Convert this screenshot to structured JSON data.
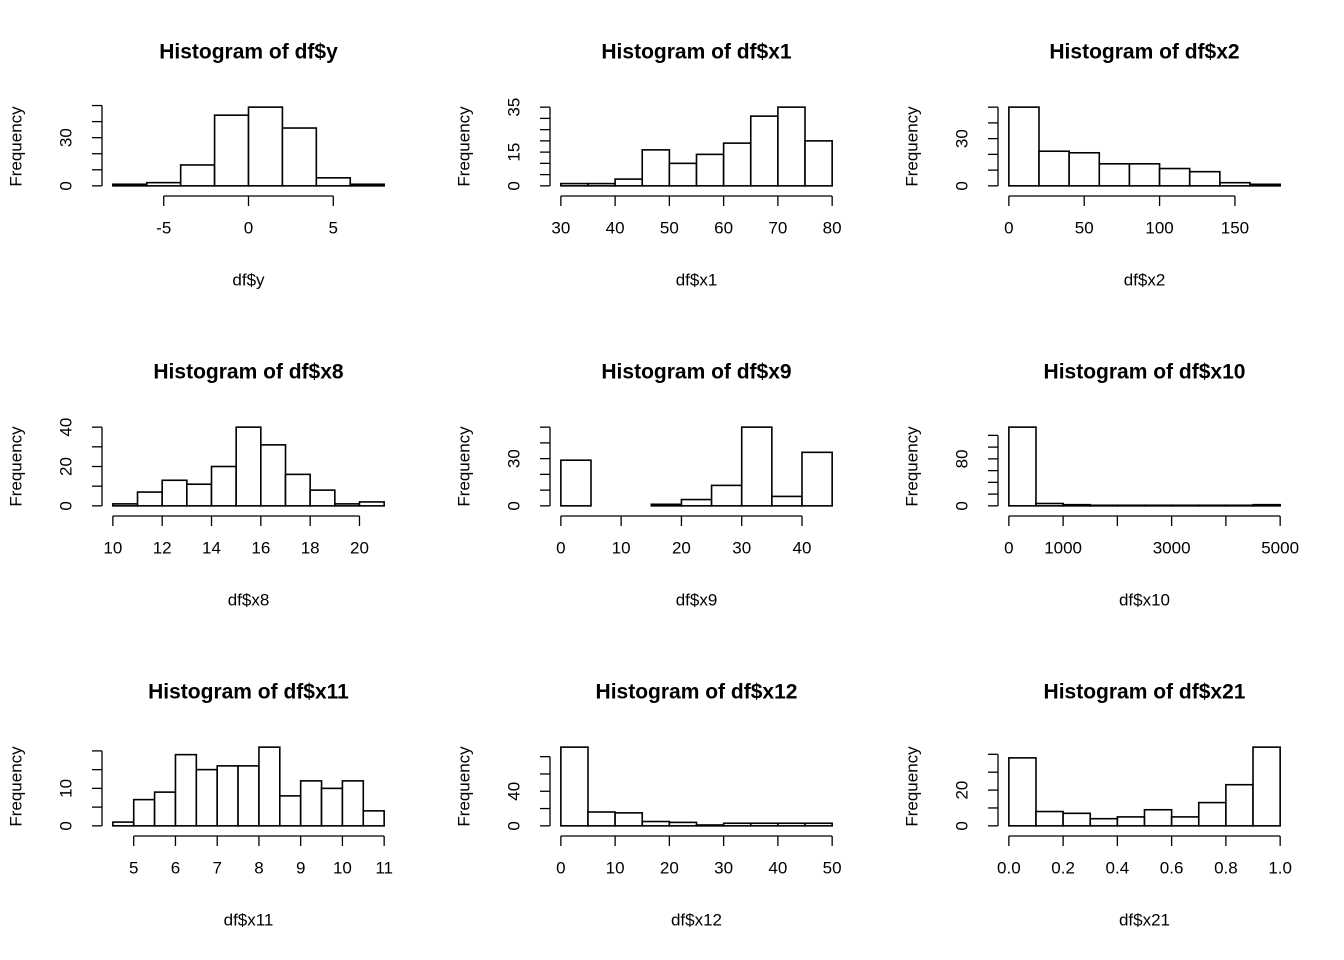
{
  "chart_data": [
    {
      "type": "histogram",
      "title": "Histogram of df$y",
      "x_label": "df$y",
      "y_label": "Frequency",
      "color": "#ffffff",
      "bins": [
        -8,
        -6,
        -4,
        -2,
        0,
        2,
        4,
        6,
        8
      ],
      "counts": [
        1,
        2,
        13,
        44,
        49,
        36,
        5,
        1
      ],
      "xlim": [
        -8.64,
        8.64
      ],
      "ylim": [
        -1.96,
        50.96
      ],
      "xticks": [
        -5,
        0,
        5
      ],
      "yticks": [
        0,
        30
      ],
      "yticks_unlabeled": [
        10,
        20,
        40,
        50
      ]
    },
    {
      "type": "histogram",
      "title": "Histogram of df$x1",
      "x_label": "df$x1",
      "y_label": "Frequency",
      "color": "#ffffff",
      "bins": [
        30,
        35,
        40,
        45,
        50,
        55,
        60,
        65,
        70,
        75,
        80
      ],
      "counts": [
        1,
        1,
        3,
        16,
        10,
        14,
        19,
        31,
        35,
        20
      ],
      "xlim": [
        28,
        82
      ],
      "ylim": [
        -1.4,
        36.4
      ],
      "xticks": [
        30,
        40,
        50,
        60,
        70,
        80
      ],
      "yticks": [
        0,
        15,
        35
      ],
      "yticks_unlabeled": [
        5,
        10,
        20,
        25,
        30
      ]
    },
    {
      "type": "histogram",
      "title": "Histogram of df$x2",
      "x_label": "df$x2",
      "y_label": "Frequency",
      "color": "#ffffff",
      "bins": [
        0,
        20,
        40,
        60,
        80,
        100,
        120,
        140,
        160,
        180
      ],
      "counts": [
        50,
        22,
        21,
        14,
        14,
        11,
        9,
        2,
        1
      ],
      "xlim": [
        -7.2,
        187.2
      ],
      "ylim": [
        -2,
        52
      ],
      "xticks": [
        0,
        50,
        100,
        150
      ],
      "yticks": [
        0,
        30
      ],
      "yticks_unlabeled": [
        10,
        20,
        40,
        50
      ]
    },
    {
      "type": "histogram",
      "title": "Histogram of df$x8",
      "x_label": "df$x8",
      "y_label": "Frequency",
      "color": "#ffffff",
      "bins": [
        10,
        11,
        12,
        13,
        14,
        15,
        16,
        17,
        18,
        19,
        20,
        21
      ],
      "counts": [
        1,
        7,
        13,
        11,
        20,
        40,
        31,
        16,
        8,
        1,
        2
      ],
      "xlim": [
        9.56,
        21.44
      ],
      "ylim": [
        -1.6,
        41.6
      ],
      "xticks": [
        10,
        12,
        14,
        16,
        18,
        20
      ],
      "yticks": [
        0,
        20,
        40
      ],
      "yticks_unlabeled": [
        10,
        30
      ]
    },
    {
      "type": "histogram",
      "title": "Histogram of df$x9",
      "x_label": "df$x9",
      "y_label": "Frequency",
      "color": "#ffffff",
      "bins": [
        0,
        5,
        10,
        15,
        20,
        25,
        30,
        35,
        40,
        45
      ],
      "counts": [
        29,
        0,
        0,
        1,
        4,
        13,
        50,
        6,
        34
      ],
      "xlim": [
        -1.8,
        46.8
      ],
      "ylim": [
        -2,
        52
      ],
      "xticks": [
        0,
        10,
        20,
        30,
        40
      ],
      "yticks": [
        0,
        30
      ],
      "yticks_unlabeled": [
        10,
        20,
        40,
        50
      ]
    },
    {
      "type": "histogram",
      "title": "Histogram of df$x10",
      "x_label": "df$x10",
      "y_label": "Frequency",
      "color": "#ffffff",
      "bins": [
        0,
        500,
        1000,
        1500,
        2000,
        2500,
        3000,
        3500,
        4000,
        4500,
        5000
      ],
      "counts": [
        134,
        4,
        2,
        1,
        1,
        1,
        1,
        1,
        1,
        2
      ],
      "xlim": [
        -200,
        5200
      ],
      "ylim": [
        -5.36,
        139.36
      ],
      "xticks": [
        0,
        1000,
        3000,
        5000
      ],
      "xticks_unlabeled": [
        2000,
        4000
      ],
      "yticks": [
        0,
        80
      ],
      "yticks_unlabeled": [
        20,
        40,
        60,
        100,
        120
      ]
    },
    {
      "type": "histogram",
      "title": "Histogram of df$x11",
      "x_label": "df$x11",
      "y_label": "Frequency",
      "color": "#ffffff",
      "bins": [
        4.5,
        5,
        5.5,
        6,
        6.5,
        7,
        7.5,
        8,
        8.5,
        9,
        9.5,
        10,
        10.5,
        11
      ],
      "counts": [
        1,
        7,
        9,
        19,
        15,
        16,
        16,
        21,
        8,
        12,
        10,
        12,
        4
      ],
      "xlim": [
        4.24,
        11.26
      ],
      "ylim": [
        -0.84,
        21.84
      ],
      "xticks": [
        5,
        6,
        7,
        8,
        9,
        10,
        11
      ],
      "yticks": [
        0,
        10
      ],
      "yticks_unlabeled": [
        5,
        15,
        20
      ]
    },
    {
      "type": "histogram",
      "title": "Histogram of df$x12",
      "x_label": "df$x12",
      "y_label": "Frequency",
      "color": "#ffffff",
      "bins": [
        0,
        5,
        10,
        15,
        20,
        25,
        30,
        35,
        40,
        45,
        50
      ],
      "counts": [
        91,
        16,
        15,
        5,
        4,
        1,
        3,
        3,
        3,
        3
      ],
      "xlim": [
        -2,
        52
      ],
      "ylim": [
        -3.64,
        94.64
      ],
      "xticks": [
        0,
        10,
        20,
        30,
        40,
        50
      ],
      "yticks": [
        0,
        40
      ],
      "yticks_unlabeled": [
        20,
        60,
        80
      ]
    },
    {
      "type": "histogram",
      "title": "Histogram of df$x21",
      "x_label": "df$x21",
      "y_label": "Frequency",
      "color": "#ffffff",
      "bins": [
        0,
        0.1,
        0.2,
        0.3,
        0.4,
        0.5,
        0.6,
        0.7,
        0.8,
        0.9,
        1
      ],
      "counts": [
        38,
        8,
        7,
        4,
        5,
        9,
        5,
        13,
        23,
        44
      ],
      "xlim": [
        -0.04,
        1.04
      ],
      "ylim": [
        -1.76,
        45.76
      ],
      "xticks": [
        {
          "value": 0,
          "label": "0.0"
        },
        0.2,
        0.4,
        0.6,
        0.8,
        {
          "value": 1,
          "label": "1.0"
        }
      ],
      "yticks": [
        0,
        20
      ],
      "yticks_unlabeled": [
        10,
        30,
        40
      ]
    }
  ]
}
